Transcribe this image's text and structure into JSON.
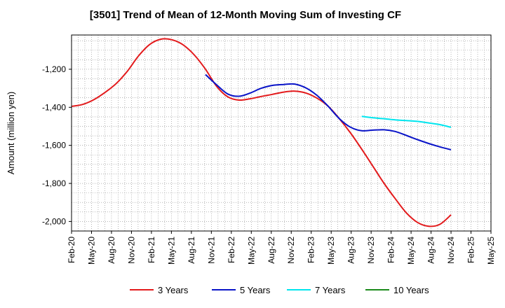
{
  "chart_data": {
    "type": "line",
    "title": "[3501]  Trend of Mean of 12-Month Moving Sum of Investing CF",
    "xlabel": "",
    "ylabel": "Amount (million yen)",
    "ylim": [
      -2050,
      -1020
    ],
    "yticks": [
      -1200,
      -1400,
      -1600,
      -1800,
      -2000
    ],
    "ytick_labels": [
      "-1,200",
      "-1,400",
      "-1,600",
      "-1,800",
      "-2,000"
    ],
    "x_labels": [
      "Feb-20",
      "May-20",
      "Aug-20",
      "Nov-20",
      "Feb-21",
      "May-21",
      "Aug-21",
      "Nov-21",
      "Feb-22",
      "May-22",
      "Aug-22",
      "Nov-22",
      "Feb-23",
      "May-23",
      "Aug-23",
      "Nov-23",
      "Feb-24",
      "May-24",
      "Aug-24",
      "Nov-24",
      "Feb-25",
      "May-25"
    ],
    "grid": true,
    "legend_position": "bottom",
    "series": [
      {
        "name": "3 Years",
        "color": "#e31a1c",
        "points": [
          [
            0,
            -1395
          ],
          [
            1,
            -1385
          ],
          [
            2,
            -1360
          ],
          [
            3,
            -1322
          ],
          [
            4,
            -1275
          ],
          [
            5,
            -1210
          ],
          [
            6,
            -1130
          ],
          [
            7,
            -1070
          ],
          [
            8,
            -1042
          ],
          [
            9,
            -1045
          ],
          [
            10,
            -1072
          ],
          [
            11,
            -1125
          ],
          [
            12,
            -1200
          ],
          [
            13,
            -1290
          ],
          [
            14,
            -1345
          ],
          [
            15,
            -1362
          ],
          [
            16,
            -1355
          ],
          [
            17,
            -1343
          ],
          [
            18,
            -1332
          ],
          [
            19,
            -1320
          ],
          [
            20,
            -1315
          ],
          [
            21,
            -1325
          ],
          [
            22,
            -1352
          ],
          [
            23,
            -1395
          ],
          [
            24,
            -1460
          ],
          [
            25,
            -1535
          ],
          [
            26,
            -1620
          ],
          [
            27,
            -1710
          ],
          [
            28,
            -1800
          ],
          [
            29,
            -1880
          ],
          [
            30,
            -1955
          ],
          [
            31,
            -2005
          ],
          [
            32,
            -2025
          ],
          [
            33,
            -2015
          ],
          [
            34,
            -1965
          ]
        ]
      },
      {
        "name": "5 Years",
        "color": "#0a14c8",
        "points": [
          [
            12,
            -1228
          ],
          [
            13,
            -1282
          ],
          [
            14,
            -1330
          ],
          [
            15,
            -1342
          ],
          [
            16,
            -1325
          ],
          [
            17,
            -1300
          ],
          [
            18,
            -1285
          ],
          [
            19,
            -1280
          ],
          [
            20,
            -1278
          ],
          [
            21,
            -1298
          ],
          [
            22,
            -1338
          ],
          [
            23,
            -1395
          ],
          [
            24,
            -1460
          ],
          [
            25,
            -1505
          ],
          [
            26,
            -1523
          ],
          [
            27,
            -1520
          ],
          [
            28,
            -1518
          ],
          [
            29,
            -1527
          ],
          [
            30,
            -1548
          ],
          [
            31,
            -1570
          ],
          [
            32,
            -1590
          ],
          [
            33,
            -1608
          ],
          [
            34,
            -1623
          ]
        ]
      },
      {
        "name": "7 Years",
        "color": "#00e5ee",
        "points": [
          [
            26,
            -1448
          ],
          [
            27,
            -1455
          ],
          [
            28,
            -1460
          ],
          [
            29,
            -1466
          ],
          [
            30,
            -1470
          ],
          [
            31,
            -1474
          ],
          [
            32,
            -1482
          ],
          [
            33,
            -1491
          ],
          [
            34,
            -1505
          ]
        ]
      },
      {
        "name": "10 Years",
        "color": "#1a8a1a",
        "points": []
      }
    ]
  }
}
